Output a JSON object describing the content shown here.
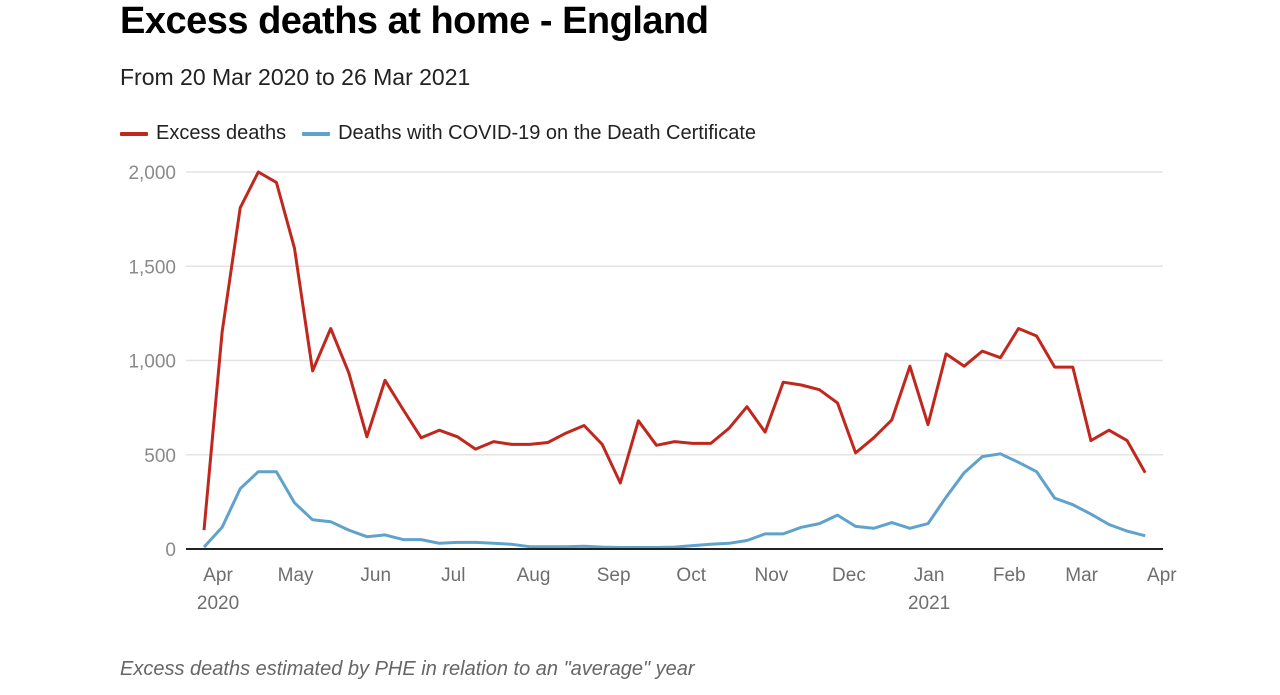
{
  "chart_data": {
    "type": "line",
    "title": "Excess deaths at home - England",
    "subtitle": "From 20 Mar 2020 to 26 Mar 2021",
    "footer": "Excess deaths estimated by PHE in relation to an \"average\" year",
    "xlabel": "",
    "ylabel": "",
    "x_start": "2020-03-20",
    "x_end": "2021-03-26",
    "x_interval_days": 7,
    "ylim": [
      0,
      2000
    ],
    "y_ticks": [
      0,
      500,
      1000,
      1500,
      2000
    ],
    "y_tick_labels": [
      "0",
      "500",
      "1,000",
      "1,500",
      "2,000"
    ],
    "x_ticks": [
      {
        "date": "2020-04-01",
        "label": "Apr",
        "sublabel": "2020"
      },
      {
        "date": "2020-05-01",
        "label": "May",
        "sublabel": ""
      },
      {
        "date": "2020-06-01",
        "label": "Jun",
        "sublabel": ""
      },
      {
        "date": "2020-07-01",
        "label": "Jul",
        "sublabel": ""
      },
      {
        "date": "2020-08-01",
        "label": "Aug",
        "sublabel": ""
      },
      {
        "date": "2020-09-01",
        "label": "Sep",
        "sublabel": ""
      },
      {
        "date": "2020-10-01",
        "label": "Oct",
        "sublabel": ""
      },
      {
        "date": "2020-11-01",
        "label": "Nov",
        "sublabel": ""
      },
      {
        "date": "2020-12-01",
        "label": "Dec",
        "sublabel": ""
      },
      {
        "date": "2021-01-01",
        "label": "Jan",
        "sublabel": "2021"
      },
      {
        "date": "2021-02-01",
        "label": "Feb",
        "sublabel": ""
      },
      {
        "date": "2021-03-01",
        "label": "Mar",
        "sublabel": ""
      },
      {
        "date": "2021-04-01",
        "label": "Apr",
        "sublabel": ""
      }
    ],
    "grid": true,
    "legend_position": "top-left",
    "series": [
      {
        "name": "Excess deaths",
        "color": "#c0281e",
        "values": [
          100,
          1150,
          1810,
          2000,
          1945,
          1595,
          945,
          1170,
          935,
          595,
          895,
          740,
          590,
          630,
          595,
          530,
          570,
          555,
          555,
          565,
          615,
          655,
          555,
          350,
          680,
          550,
          570,
          560,
          560,
          640,
          755,
          620,
          885,
          870,
          845,
          775,
          510,
          590,
          685,
          970,
          660,
          1035,
          970,
          1050,
          1015,
          1170,
          1130,
          965,
          965,
          575,
          630,
          575,
          405
        ]
      },
      {
        "name": "Deaths with COVID-19 on the Death Certificate",
        "color": "#5fa2cb",
        "values": [
          10,
          115,
          320,
          410,
          410,
          245,
          155,
          145,
          100,
          65,
          75,
          50,
          50,
          30,
          35,
          35,
          30,
          25,
          12,
          12,
          12,
          15,
          10,
          8,
          8,
          8,
          10,
          18,
          25,
          30,
          45,
          80,
          80,
          115,
          135,
          180,
          120,
          110,
          140,
          110,
          135,
          275,
          405,
          490,
          505,
          460,
          410,
          270,
          235,
          185,
          130,
          95,
          70
        ]
      }
    ]
  }
}
